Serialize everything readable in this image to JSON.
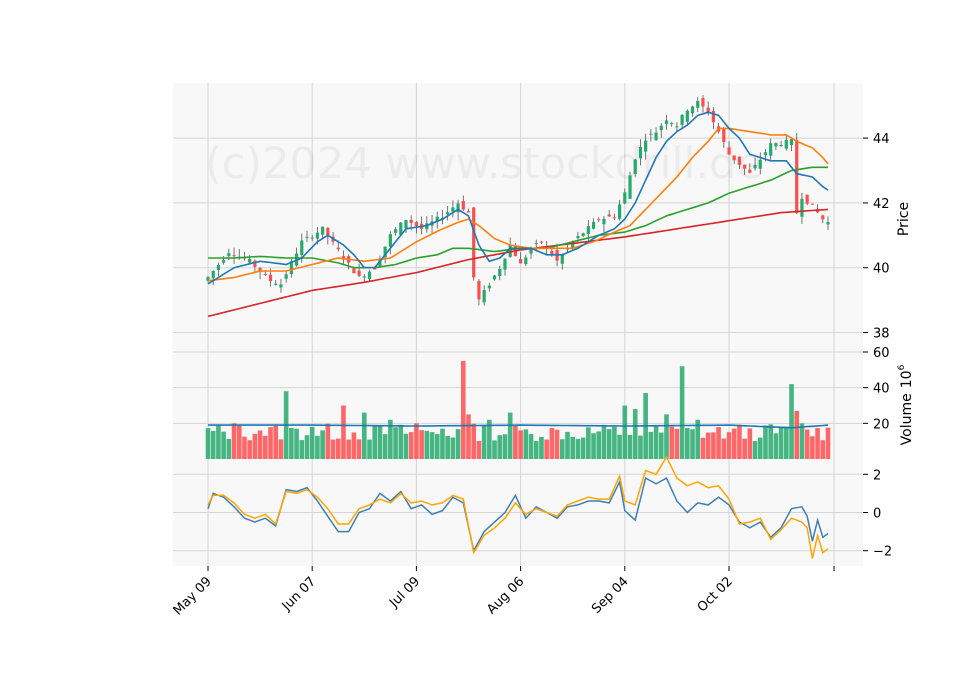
{
  "watermark": "(c)2024 www.stockdrill.de",
  "colors": {
    "up": "#26a96c",
    "down": "#ff4d4f",
    "ma_fast": "#1f77b4",
    "ma_mid": "#ff7f0e",
    "ma_slow": "#2ca02c",
    "ma_long": "#d62728",
    "vol_avg": "#1f77b4",
    "osc_a": "#3f7fb6",
    "osc_b": "#ffa500",
    "panel_bg": "#f8f8f8",
    "grid": "#d5d5d5"
  },
  "chart_data": {
    "type": "candlestick",
    "x_tick_labels": [
      "May 09",
      "Jun 07",
      "Jul 09",
      "Aug 06",
      "Sep 04",
      "Oct 02"
    ],
    "x_tick_index": [
      0,
      20,
      40,
      60,
      80,
      100
    ],
    "n_bars": 120,
    "grid": true,
    "panels": [
      {
        "name": "price",
        "ylabel": "Price",
        "ylim": [
          37.4,
          45.7
        ],
        "yticks": [
          38,
          40,
          42,
          44
        ],
        "series": [
          {
            "kind": "candles"
          },
          {
            "kind": "line",
            "color_key": "ma_fast",
            "field": "ma_fast"
          },
          {
            "kind": "line",
            "color_key": "ma_mid",
            "field": "ma_mid"
          },
          {
            "kind": "line",
            "color_key": "ma_slow",
            "field": "ma_slow"
          },
          {
            "kind": "line",
            "color_key": "ma_long",
            "field": "ma_long"
          }
        ]
      },
      {
        "name": "volume",
        "ylabel": "Volume",
        "ylabel_exponent": "10",
        "ylabel_exponent_power": "6",
        "ylim": [
          0,
          60
        ],
        "yticks": [
          20,
          40,
          60
        ],
        "series": [
          {
            "kind": "bars",
            "field": "volume"
          },
          {
            "kind": "line",
            "color_key": "vol_avg",
            "field": "vol_avg"
          }
        ]
      },
      {
        "name": "oscillator",
        "ylabel": "",
        "ylim": [
          -2.8,
          2.8
        ],
        "yticks": [
          -2,
          0,
          2
        ],
        "series": [
          {
            "kind": "line",
            "color_key": "osc_a",
            "field": "osc_a"
          },
          {
            "kind": "line",
            "color_key": "osc_b",
            "field": "osc_b"
          }
        ]
      }
    ],
    "anchors": {
      "close": [
        [
          0,
          39.7
        ],
        [
          4,
          40.5
        ],
        [
          8,
          40.2
        ],
        [
          12,
          39.6
        ],
        [
          14,
          39.5
        ],
        [
          18,
          40.8
        ],
        [
          22,
          41.2
        ],
        [
          26,
          40.3
        ],
        [
          29,
          39.7
        ],
        [
          32,
          40.0
        ],
        [
          35,
          41.0
        ],
        [
          38,
          41.5
        ],
        [
          41,
          41.2
        ],
        [
          45,
          41.6
        ],
        [
          48,
          42.0
        ],
        [
          50,
          41.7
        ],
        [
          51,
          39.7
        ],
        [
          52,
          39.0
        ],
        [
          54,
          39.5
        ],
        [
          56,
          40.0
        ],
        [
          58,
          40.7
        ],
        [
          60,
          40.1
        ],
        [
          62,
          40.6
        ],
        [
          64,
          40.8
        ],
        [
          67,
          40.2
        ],
        [
          70,
          40.8
        ],
        [
          75,
          41.5
        ],
        [
          78,
          41.6
        ],
        [
          80,
          42.3
        ],
        [
          82,
          43.4
        ],
        [
          84,
          44.0
        ],
        [
          86,
          44.2
        ],
        [
          88,
          44.6
        ],
        [
          90,
          44.4
        ],
        [
          92,
          44.9
        ],
        [
          94,
          45.1
        ],
        [
          96,
          44.8
        ],
        [
          98,
          44.2
        ],
        [
          100,
          43.5
        ],
        [
          104,
          42.9
        ],
        [
          108,
          43.8
        ],
        [
          112,
          43.9
        ],
        [
          113,
          41.7
        ],
        [
          114,
          42.2
        ],
        [
          116,
          41.9
        ],
        [
          118,
          41.5
        ],
        [
          119,
          41.4
        ]
      ],
      "ma_fast": [
        [
          0,
          39.5
        ],
        [
          5,
          40.0
        ],
        [
          10,
          40.2
        ],
        [
          15,
          40.1
        ],
        [
          18,
          40.3
        ],
        [
          21,
          40.8
        ],
        [
          23,
          41.0
        ],
        [
          26,
          40.7
        ],
        [
          28,
          40.4
        ],
        [
          30,
          40.0
        ],
        [
          32,
          40.0
        ],
        [
          35,
          40.6
        ],
        [
          38,
          41.2
        ],
        [
          42,
          41.3
        ],
        [
          45,
          41.5
        ],
        [
          48,
          41.8
        ],
        [
          50,
          41.6
        ],
        [
          52,
          40.7
        ],
        [
          54,
          40.2
        ],
        [
          56,
          40.3
        ],
        [
          58,
          40.6
        ],
        [
          60,
          40.6
        ],
        [
          62,
          40.6
        ],
        [
          65,
          40.4
        ],
        [
          68,
          40.4
        ],
        [
          71,
          40.6
        ],
        [
          75,
          41.0
        ],
        [
          78,
          41.2
        ],
        [
          80,
          41.5
        ],
        [
          82,
          42.0
        ],
        [
          84,
          42.7
        ],
        [
          86,
          43.4
        ],
        [
          88,
          43.9
        ],
        [
          90,
          44.2
        ],
        [
          92,
          44.4
        ],
        [
          94,
          44.7
        ],
        [
          96,
          44.8
        ],
        [
          98,
          44.7
        ],
        [
          100,
          44.3
        ],
        [
          102,
          44.0
        ],
        [
          104,
          43.5
        ],
        [
          108,
          43.3
        ],
        [
          111,
          43.3
        ],
        [
          113,
          42.9
        ],
        [
          116,
          42.8
        ],
        [
          118,
          42.5
        ],
        [
          119,
          42.4
        ]
      ],
      "ma_mid": [
        [
          0,
          39.6
        ],
        [
          5,
          39.7
        ],
        [
          10,
          39.9
        ],
        [
          15,
          39.9
        ],
        [
          20,
          40.1
        ],
        [
          25,
          40.3
        ],
        [
          30,
          40.2
        ],
        [
          35,
          40.3
        ],
        [
          40,
          40.8
        ],
        [
          45,
          41.2
        ],
        [
          48,
          41.4
        ],
        [
          50,
          41.5
        ],
        [
          52,
          41.3
        ],
        [
          55,
          40.9
        ],
        [
          58,
          40.7
        ],
        [
          62,
          40.6
        ],
        [
          66,
          40.6
        ],
        [
          70,
          40.6
        ],
        [
          74,
          40.8
        ],
        [
          78,
          41.1
        ],
        [
          81,
          41.3
        ],
        [
          84,
          41.8
        ],
        [
          87,
          42.3
        ],
        [
          90,
          42.8
        ],
        [
          93,
          43.4
        ],
        [
          96,
          43.9
        ],
        [
          98,
          44.3
        ],
        [
          100,
          44.3
        ],
        [
          104,
          44.2
        ],
        [
          108,
          44.1
        ],
        [
          111,
          44.1
        ],
        [
          113,
          43.9
        ],
        [
          116,
          43.7
        ],
        [
          118,
          43.4
        ],
        [
          119,
          43.2
        ]
      ],
      "ma_slow": [
        [
          0,
          40.3
        ],
        [
          5,
          40.3
        ],
        [
          10,
          40.35
        ],
        [
          15,
          40.3
        ],
        [
          20,
          40.3
        ],
        [
          25,
          40.15
        ],
        [
          28,
          40.0
        ],
        [
          32,
          40.0
        ],
        [
          36,
          40.1
        ],
        [
          40,
          40.3
        ],
        [
          44,
          40.4
        ],
        [
          47,
          40.6
        ],
        [
          50,
          40.6
        ],
        [
          55,
          40.5
        ],
        [
          60,
          40.6
        ],
        [
          65,
          40.6
        ],
        [
          70,
          40.8
        ],
        [
          75,
          41.0
        ],
        [
          80,
          41.1
        ],
        [
          84,
          41.3
        ],
        [
          88,
          41.6
        ],
        [
          92,
          41.8
        ],
        [
          96,
          42.0
        ],
        [
          100,
          42.3
        ],
        [
          104,
          42.5
        ],
        [
          108,
          42.7
        ],
        [
          112,
          43.0
        ],
        [
          116,
          43.1
        ],
        [
          119,
          43.1
        ]
      ],
      "ma_long": [
        [
          0,
          38.5
        ],
        [
          10,
          38.9
        ],
        [
          20,
          39.3
        ],
        [
          30,
          39.55
        ],
        [
          40,
          39.85
        ],
        [
          50,
          40.25
        ],
        [
          60,
          40.55
        ],
        [
          70,
          40.75
        ],
        [
          80,
          40.95
        ],
        [
          90,
          41.2
        ],
        [
          100,
          41.45
        ],
        [
          110,
          41.7
        ],
        [
          119,
          41.8
        ]
      ],
      "vol_avg": [
        [
          0,
          19
        ],
        [
          20,
          19
        ],
        [
          40,
          18.5
        ],
        [
          60,
          19
        ],
        [
          80,
          18.5
        ],
        [
          100,
          19
        ],
        [
          112,
          17.5
        ],
        [
          119,
          19
        ]
      ],
      "osc_a": [
        [
          0,
          0.2
        ],
        [
          1,
          1.0
        ],
        [
          3,
          0.8
        ],
        [
          5,
          0.3
        ],
        [
          7,
          -0.3
        ],
        [
          9,
          -0.5
        ],
        [
          11,
          -0.3
        ],
        [
          13,
          -0.7
        ],
        [
          15,
          1.2
        ],
        [
          17,
          1.1
        ],
        [
          19,
          1.3
        ],
        [
          21,
          0.6
        ],
        [
          23,
          -0.2
        ],
        [
          25,
          -1.0
        ],
        [
          27,
          -1.0
        ],
        [
          29,
          0.0
        ],
        [
          31,
          0.2
        ],
        [
          33,
          1.0
        ],
        [
          35,
          0.6
        ],
        [
          37,
          1.1
        ],
        [
          39,
          0.2
        ],
        [
          41,
          0.4
        ],
        [
          43,
          -0.1
        ],
        [
          45,
          0.1
        ],
        [
          47,
          0.8
        ],
        [
          49,
          0.5
        ],
        [
          51,
          -2.0
        ],
        [
          53,
          -1.0
        ],
        [
          55,
          -0.5
        ],
        [
          57,
          0.0
        ],
        [
          59,
          0.9
        ],
        [
          61,
          -0.3
        ],
        [
          63,
          0.3
        ],
        [
          65,
          0.0
        ],
        [
          67,
          -0.3
        ],
        [
          69,
          0.3
        ],
        [
          71,
          0.4
        ],
        [
          73,
          0.6
        ],
        [
          75,
          0.6
        ],
        [
          77,
          0.5
        ],
        [
          79,
          1.6
        ],
        [
          80,
          0.1
        ],
        [
          82,
          -0.4
        ],
        [
          84,
          1.8
        ],
        [
          86,
          1.5
        ],
        [
          88,
          1.8
        ],
        [
          90,
          0.6
        ],
        [
          92,
          0.0
        ],
        [
          94,
          0.5
        ],
        [
          96,
          0.4
        ],
        [
          98,
          0.8
        ],
        [
          100,
          0.4
        ],
        [
          102,
          -0.5
        ],
        [
          104,
          -0.8
        ],
        [
          106,
          -0.5
        ],
        [
          108,
          -1.3
        ],
        [
          110,
          -0.8
        ],
        [
          112,
          0.2
        ],
        [
          114,
          0.3
        ],
        [
          115,
          -0.2
        ],
        [
          116,
          -1.5
        ],
        [
          117,
          -0.4
        ],
        [
          118,
          -1.3
        ],
        [
          119,
          -1.1
        ]
      ],
      "osc_b": [
        [
          0,
          0.4
        ],
        [
          1,
          0.9
        ],
        [
          3,
          0.9
        ],
        [
          5,
          0.5
        ],
        [
          7,
          -0.1
        ],
        [
          9,
          -0.3
        ],
        [
          11,
          -0.1
        ],
        [
          13,
          -0.6
        ],
        [
          15,
          1.1
        ],
        [
          17,
          1.0
        ],
        [
          19,
          1.2
        ],
        [
          21,
          0.8
        ],
        [
          23,
          0.2
        ],
        [
          25,
          -0.6
        ],
        [
          27,
          -0.6
        ],
        [
          29,
          0.2
        ],
        [
          31,
          0.4
        ],
        [
          33,
          0.7
        ],
        [
          35,
          0.5
        ],
        [
          37,
          1.0
        ],
        [
          39,
          0.5
        ],
        [
          41,
          0.6
        ],
        [
          43,
          0.4
        ],
        [
          45,
          0.5
        ],
        [
          47,
          0.9
        ],
        [
          49,
          0.7
        ],
        [
          51,
          -2.1
        ],
        [
          53,
          -1.2
        ],
        [
          55,
          -0.8
        ],
        [
          57,
          -0.3
        ],
        [
          59,
          0.5
        ],
        [
          61,
          -0.1
        ],
        [
          63,
          0.2
        ],
        [
          65,
          0.0
        ],
        [
          67,
          -0.2
        ],
        [
          69,
          0.4
        ],
        [
          71,
          0.6
        ],
        [
          73,
          0.8
        ],
        [
          75,
          0.7
        ],
        [
          77,
          0.7
        ],
        [
          79,
          1.9
        ],
        [
          80,
          0.6
        ],
        [
          82,
          0.4
        ],
        [
          84,
          2.2
        ],
        [
          86,
          2.0
        ],
        [
          88,
          2.9
        ],
        [
          90,
          1.8
        ],
        [
          92,
          1.4
        ],
        [
          94,
          1.6
        ],
        [
          96,
          1.3
        ],
        [
          98,
          1.4
        ],
        [
          100,
          0.7
        ],
        [
          102,
          -0.6
        ],
        [
          104,
          -0.5
        ],
        [
          106,
          -0.3
        ],
        [
          108,
          -1.4
        ],
        [
          110,
          -0.9
        ],
        [
          112,
          -0.3
        ],
        [
          114,
          -0.5
        ],
        [
          115,
          -0.8
        ],
        [
          116,
          -2.4
        ],
        [
          117,
          -1.2
        ],
        [
          118,
          -2.1
        ],
        [
          119,
          -1.9
        ]
      ],
      "volume_spikes": [
        [
          5,
          20
        ],
        [
          10,
          16
        ],
        [
          15,
          38
        ],
        [
          20,
          18
        ],
        [
          26,
          30
        ],
        [
          30,
          26
        ],
        [
          35,
          22
        ],
        [
          40,
          20
        ],
        [
          45,
          17
        ],
        [
          49,
          55
        ],
        [
          50,
          25
        ],
        [
          54,
          22
        ],
        [
          58,
          26
        ],
        [
          62,
          14
        ],
        [
          72,
          12
        ],
        [
          80,
          30
        ],
        [
          82,
          28
        ],
        [
          84,
          37
        ],
        [
          88,
          25
        ],
        [
          91,
          52
        ],
        [
          94,
          22
        ],
        [
          100,
          15
        ],
        [
          106,
          12
        ],
        [
          112,
          42
        ],
        [
          113,
          27
        ],
        [
          114,
          20
        ]
      ]
    }
  }
}
